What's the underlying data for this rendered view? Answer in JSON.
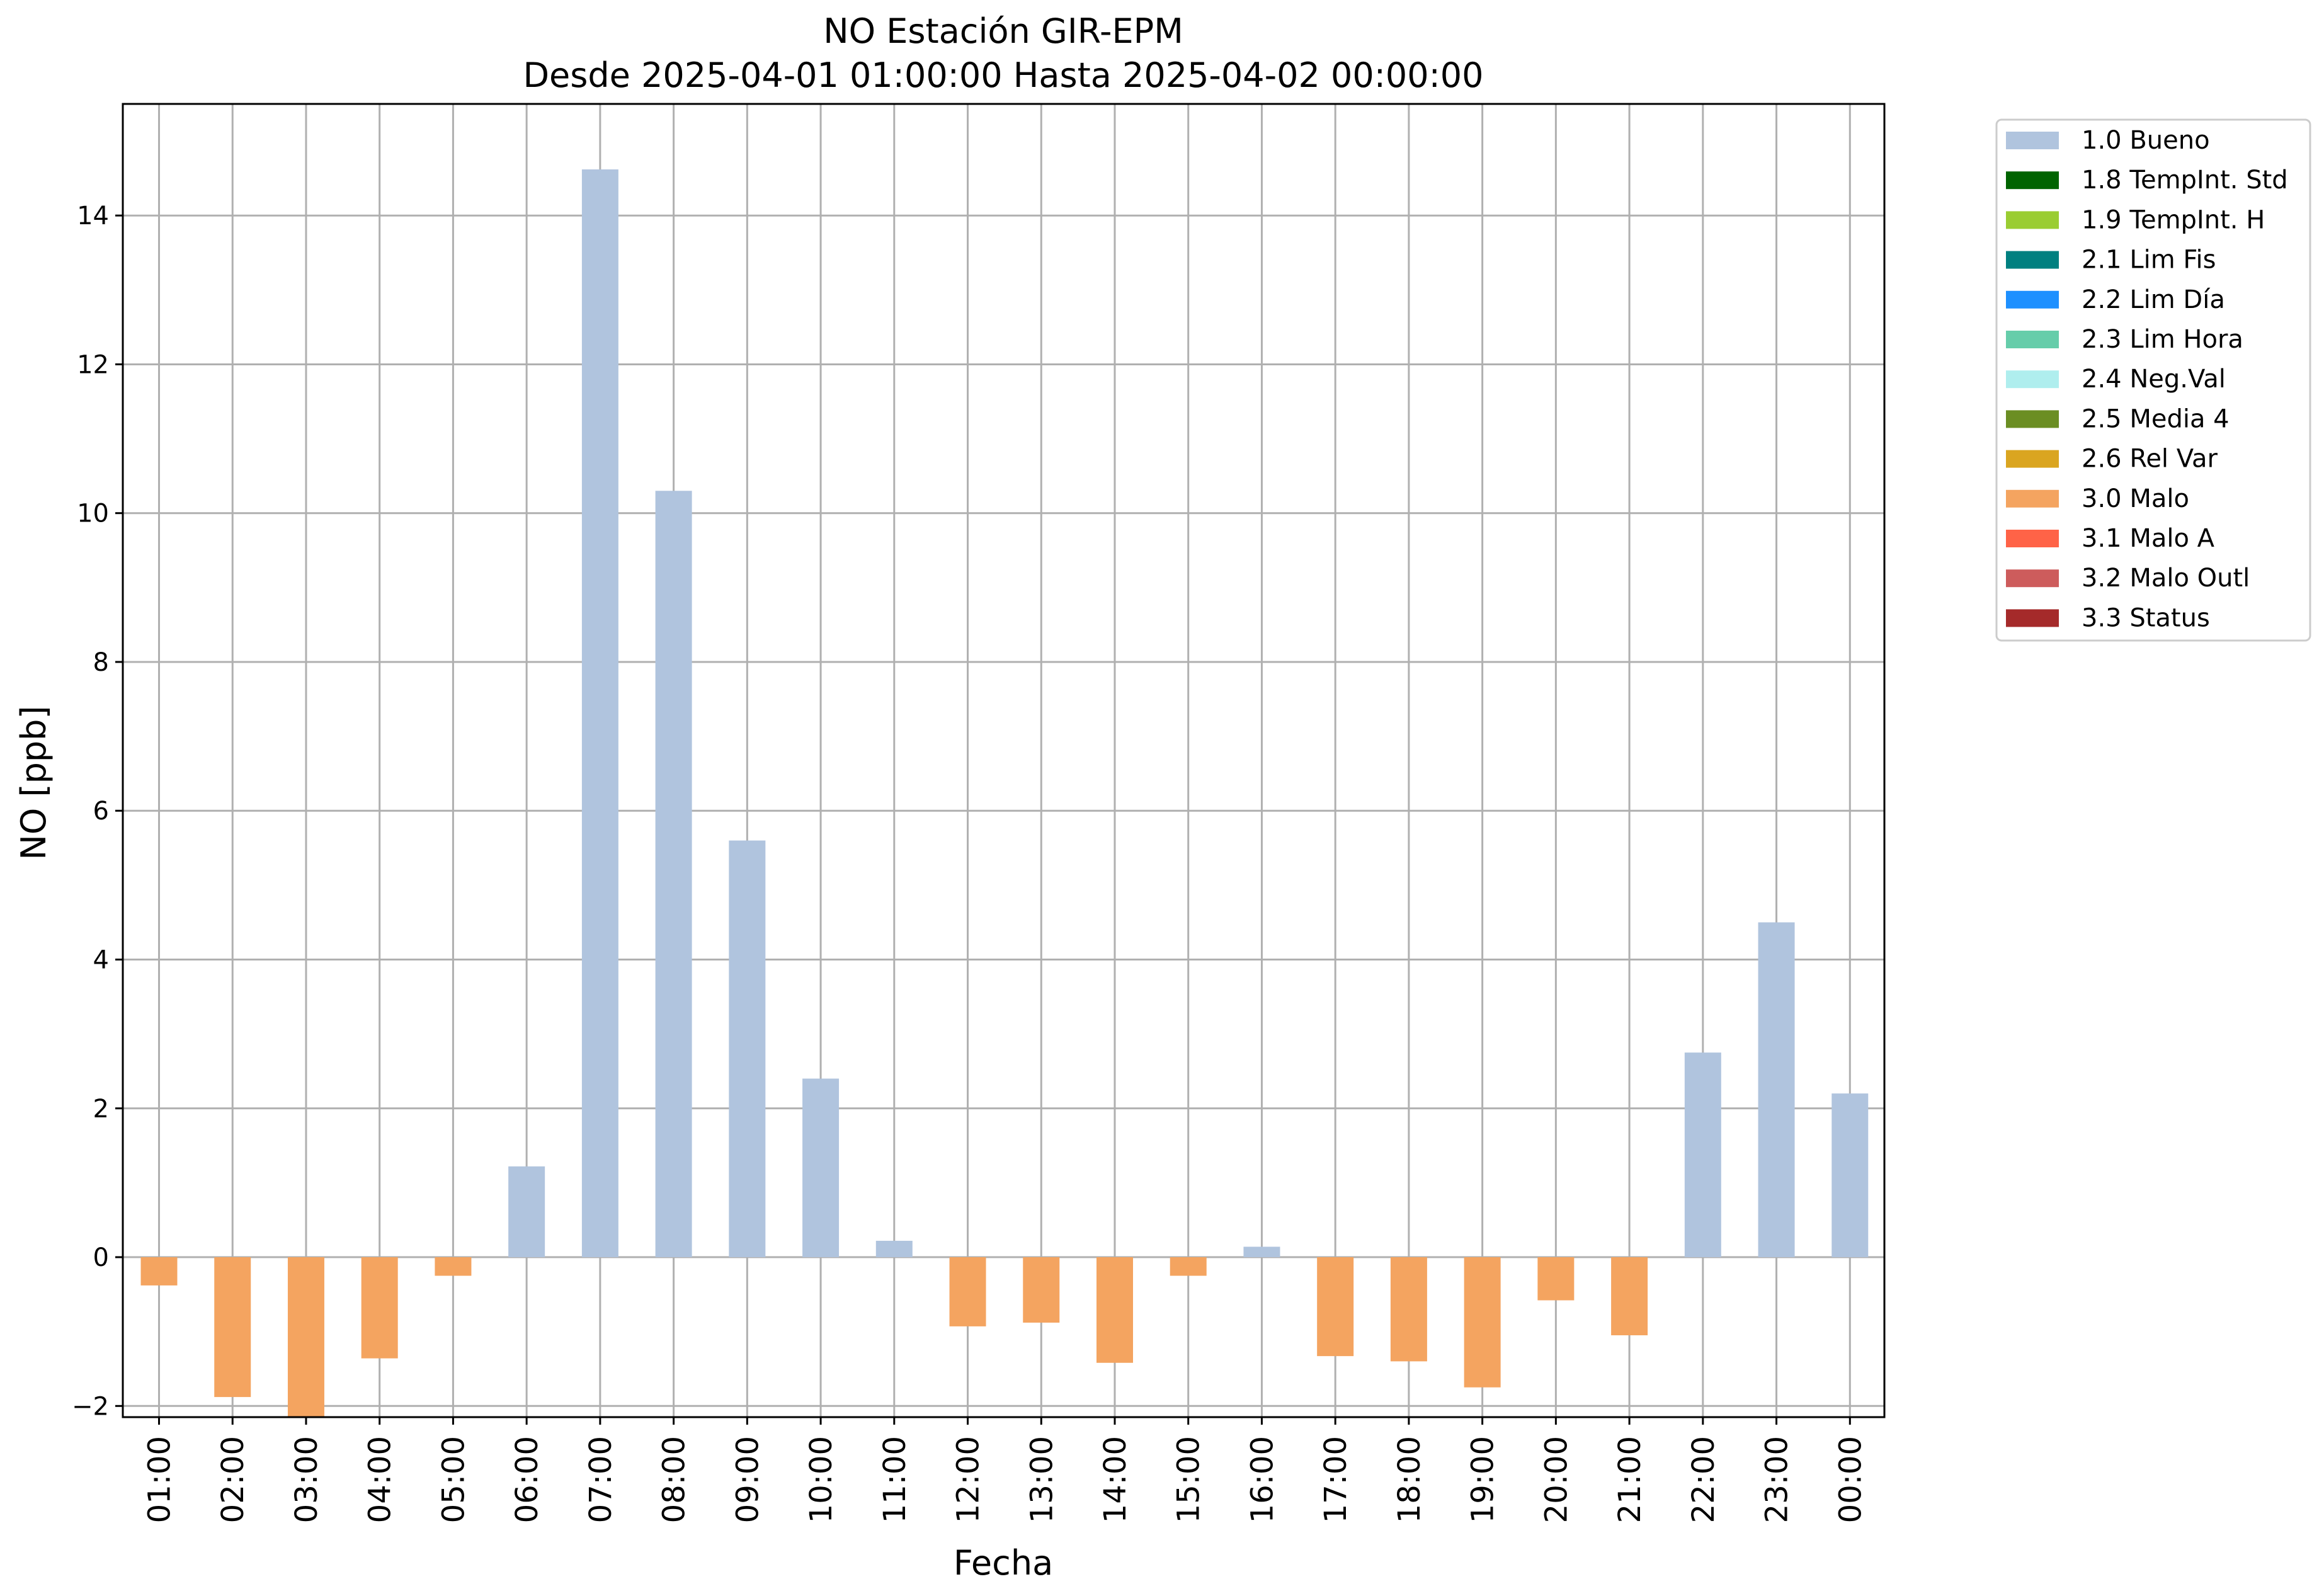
{
  "chart_data": {
    "type": "bar",
    "title": "NO Estación GIR-EPM",
    "subtitle": "Desde 2025-04-01 01:00:00 Hasta 2025-04-02 00:00:00",
    "xlabel": "Fecha",
    "ylabel": "NO [ppb]",
    "ylim": [
      -2.15,
      15.5
    ],
    "yticks": [
      -2,
      0,
      2,
      4,
      6,
      8,
      10,
      12,
      14
    ],
    "ytick_labels": [
      "−2",
      "0",
      "2",
      "4",
      "6",
      "8",
      "10",
      "12",
      "14"
    ],
    "grid": true,
    "legend_position": "outside-top-right",
    "categories": [
      "01:00",
      "02:00",
      "03:00",
      "04:00",
      "05:00",
      "06:00",
      "07:00",
      "08:00",
      "09:00",
      "10:00",
      "11:00",
      "12:00",
      "13:00",
      "14:00",
      "15:00",
      "16:00",
      "17:00",
      "18:00",
      "19:00",
      "20:00",
      "21:00",
      "22:00",
      "23:00",
      "00:00"
    ],
    "values": [
      -0.38,
      -1.88,
      -2.15,
      -1.36,
      -0.25,
      1.22,
      14.62,
      10.3,
      5.6,
      2.4,
      0.22,
      -0.93,
      -0.88,
      -1.42,
      -0.25,
      0.14,
      -1.33,
      -1.4,
      -1.75,
      -0.58,
      -1.05,
      2.75,
      4.5,
      2.2
    ],
    "flags": [
      "3.0 Malo",
      "3.0 Malo",
      "3.0 Malo",
      "3.0 Malo",
      "3.0 Malo",
      "1.0 Bueno",
      "1.0 Bueno",
      "1.0 Bueno",
      "1.0 Bueno",
      "1.0 Bueno",
      "1.0 Bueno",
      "3.0 Malo",
      "3.0 Malo",
      "3.0 Malo",
      "3.0 Malo",
      "1.0 Bueno",
      "3.0 Malo",
      "3.0 Malo",
      "3.0 Malo",
      "3.0 Malo",
      "3.0 Malo",
      "1.0 Bueno",
      "1.0 Bueno",
      "1.0 Bueno"
    ],
    "legend": [
      {
        "label": "1.0 Bueno",
        "color": "#b0c4de"
      },
      {
        "label": "1.8 TempInt. Std",
        "color": "#006400"
      },
      {
        "label": "1.9 TempInt. H",
        "color": "#9acd32"
      },
      {
        "label": "2.1 Lim Fis",
        "color": "#008080"
      },
      {
        "label": "2.2 Lim Día",
        "color": "#1e90ff"
      },
      {
        "label": "2.3 Lim Hora",
        "color": "#66cdaa"
      },
      {
        "label": "2.4 Neg.Val",
        "color": "#afeeee"
      },
      {
        "label": "2.5 Media 4",
        "color": "#6b8e23"
      },
      {
        "label": "2.6 Rel Var",
        "color": "#daa520"
      },
      {
        "label": "3.0 Malo",
        "color": "#f4a460"
      },
      {
        "label": "3.1 Malo A",
        "color": "#ff6347"
      },
      {
        "label": "3.2 Malo Outl",
        "color": "#cd5c5c"
      },
      {
        "label": "3.3 Status",
        "color": "#a52a2a"
      }
    ]
  }
}
